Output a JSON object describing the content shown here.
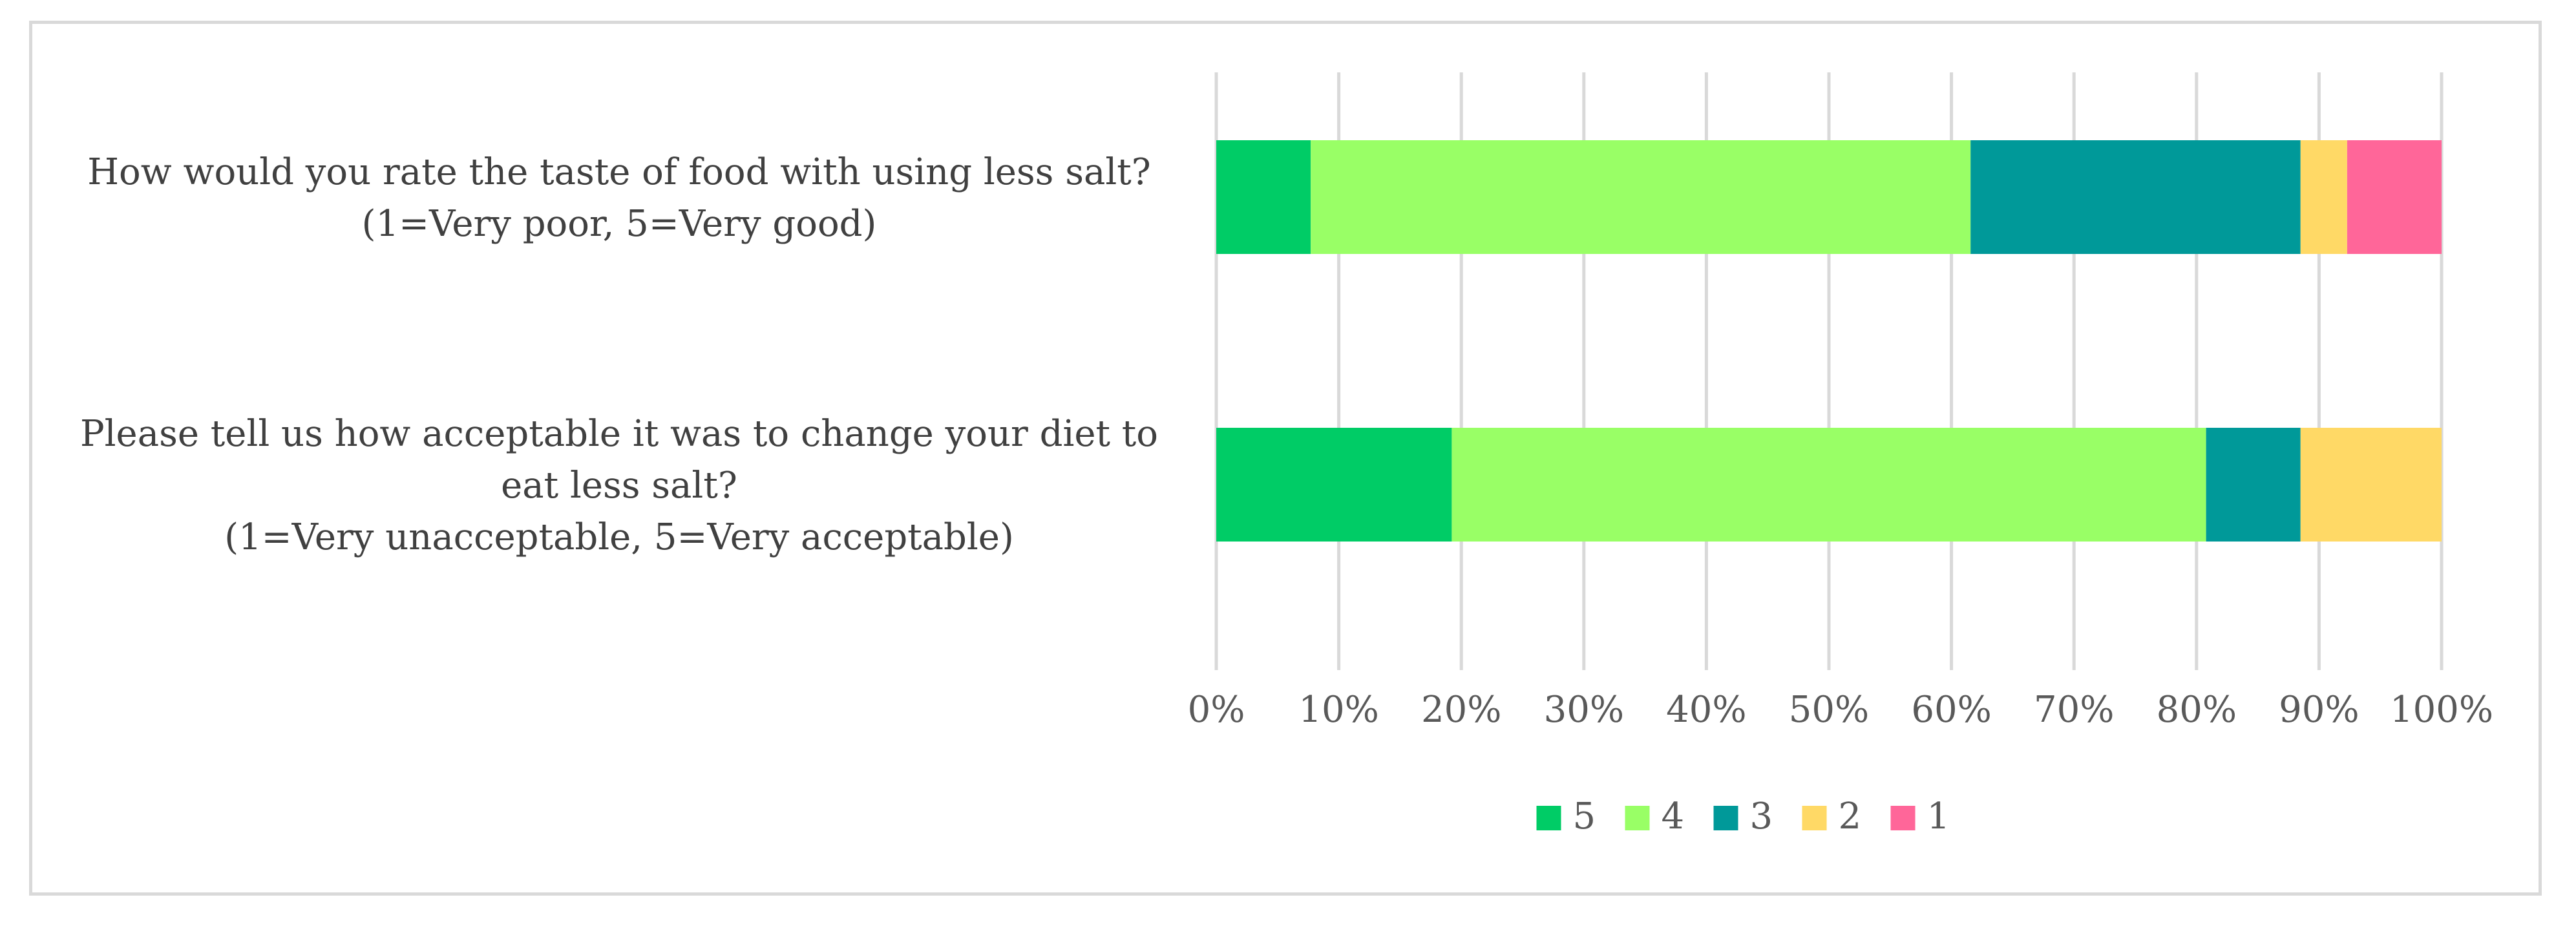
{
  "chart_data": {
    "type": "bar",
    "orientation": "horizontal",
    "stacked": "percent",
    "categories": [
      [
        "How would you rate the taste of food with using less salt?",
        "(1=Very poor, 5=Very good)"
      ],
      [
        "Please tell us how acceptable it was to change your diet to",
        "eat less salt?",
        "(1=Very unacceptable, 5=Very acceptable)"
      ]
    ],
    "series": [
      {
        "name": "5",
        "color": "#00cc66",
        "values": [
          7.7,
          19.2
        ]
      },
      {
        "name": "4",
        "color": "#99ff66",
        "values": [
          53.8,
          61.5
        ]
      },
      {
        "name": "3",
        "color": "#009999",
        "values": [
          26.9,
          7.7
        ]
      },
      {
        "name": "2",
        "color": "#ffd966",
        "values": [
          3.8,
          11.5
        ]
      },
      {
        "name": "1",
        "color": "#ff6699",
        "values": [
          7.7,
          0
        ]
      }
    ],
    "xlim": [
      0,
      100
    ],
    "xticks": [
      "0%",
      "10%",
      "20%",
      "30%",
      "40%",
      "50%",
      "60%",
      "70%",
      "80%",
      "90%",
      "100%"
    ],
    "grid": "vertical",
    "legend": "bottom"
  }
}
